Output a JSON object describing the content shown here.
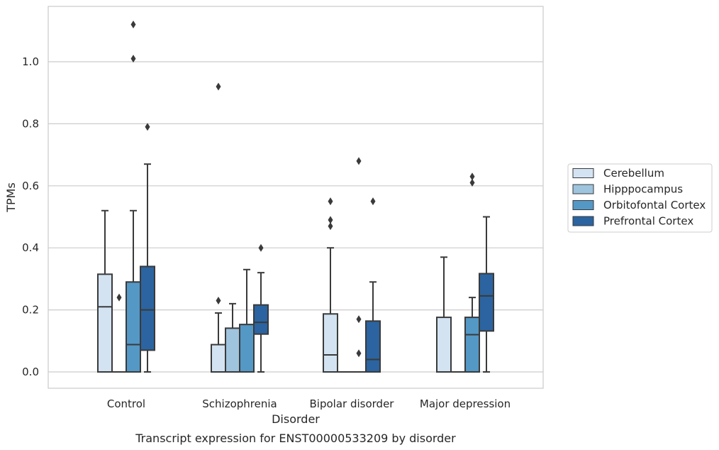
{
  "chart_data": {
    "type": "box",
    "xlabel": "Disorder",
    "ylabel": "TPMs",
    "caption": "Transcript expression for ENST00000533209 by disorder",
    "ylim": [
      -0.055,
      1.175
    ],
    "yticks": [
      0.0,
      0.2,
      0.4,
      0.6,
      0.8,
      1.0
    ],
    "ytick_labels": [
      "0.0",
      "0.2",
      "0.4",
      "0.6",
      "0.8",
      "1.0"
    ],
    "grid": true,
    "legend_position": "right",
    "categories": [
      "Control",
      "Schizophrenia",
      "Bipolar disorder",
      "Major depression"
    ],
    "series": [
      {
        "name": "Cerebellum",
        "color": "#d3e3f2",
        "boxes": [
          {
            "q1": 0.0,
            "median": 0.21,
            "q3": 0.315,
            "whisker_low": 0.0,
            "whisker_high": 0.52,
            "outliers": []
          },
          {
            "q1": 0.0,
            "median": 0.0,
            "q3": 0.088,
            "whisker_low": 0.0,
            "whisker_high": 0.19,
            "outliers": [
              0.23,
              0.92
            ]
          },
          {
            "q1": 0.0,
            "median": 0.055,
            "q3": 0.187,
            "whisker_low": 0.0,
            "whisker_high": 0.4,
            "outliers": [
              0.47,
              0.55,
              0.49
            ]
          },
          {
            "q1": 0.0,
            "median": 0.0,
            "q3": 0.176,
            "whisker_low": 0.0,
            "whisker_high": 0.37,
            "outliers": []
          }
        ]
      },
      {
        "name": "Hipppocampus",
        "color": "#9ec4de",
        "boxes": [
          {
            "q1": 0.0,
            "median": 0.0,
            "q3": 0.0,
            "whisker_low": 0.0,
            "whisker_high": 0.0,
            "outliers": [
              0.24
            ]
          },
          {
            "q1": 0.0,
            "median": 0.0,
            "q3": 0.141,
            "whisker_low": 0.0,
            "whisker_high": 0.22,
            "outliers": []
          },
          {
            "q1": 0.0,
            "median": 0.0,
            "q3": 0.0,
            "whisker_low": 0.0,
            "whisker_high": 0.0,
            "outliers": []
          },
          {
            "q1": 0.0,
            "median": 0.0,
            "q3": 0.0,
            "whisker_low": 0.0,
            "whisker_high": 0.0,
            "outliers": []
          }
        ]
      },
      {
        "name": "Orbitofontal Cortex",
        "color": "#5498c6",
        "boxes": [
          {
            "q1": 0.0,
            "median": 0.088,
            "q3": 0.29,
            "whisker_low": 0.0,
            "whisker_high": 0.52,
            "outliers": [
              1.12,
              1.01
            ]
          },
          {
            "q1": 0.0,
            "median": 0.0,
            "q3": 0.153,
            "whisker_low": 0.0,
            "whisker_high": 0.33,
            "outliers": []
          },
          {
            "q1": 0.0,
            "median": 0.0,
            "q3": 0.0,
            "whisker_low": 0.0,
            "whisker_high": 0.0,
            "outliers": [
              0.68,
              0.17,
              0.06
            ]
          },
          {
            "q1": 0.0,
            "median": 0.12,
            "q3": 0.176,
            "whisker_low": 0.0,
            "whisker_high": 0.24,
            "outliers": [
              0.63,
              0.61
            ]
          }
        ]
      },
      {
        "name": "Prefrontal Cortex",
        "color": "#2b64a0",
        "boxes": [
          {
            "q1": 0.07,
            "median": 0.2,
            "q3": 0.34,
            "whisker_low": 0.0,
            "whisker_high": 0.67,
            "outliers": [
              0.79
            ]
          },
          {
            "q1": 0.122,
            "median": 0.16,
            "q3": 0.216,
            "whisker_low": 0.0,
            "whisker_high": 0.32,
            "outliers": [
              0.4
            ]
          },
          {
            "q1": 0.0,
            "median": 0.04,
            "q3": 0.164,
            "whisker_low": 0.0,
            "whisker_high": 0.29,
            "outliers": [
              0.55
            ]
          },
          {
            "q1": 0.132,
            "median": 0.245,
            "q3": 0.317,
            "whisker_low": 0.0,
            "whisker_high": 0.5,
            "outliers": []
          }
        ]
      }
    ]
  }
}
